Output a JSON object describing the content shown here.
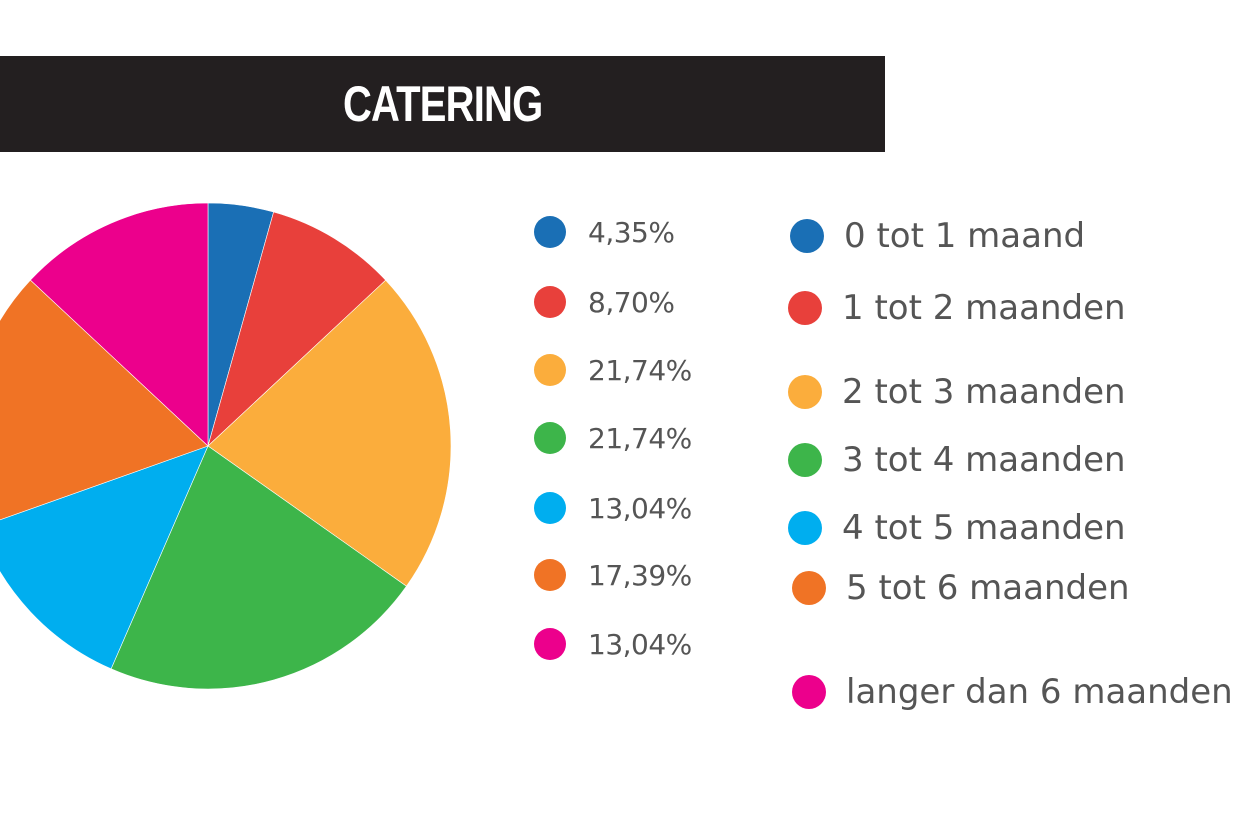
{
  "chart_data": {
    "type": "pie",
    "title": "CATERING",
    "categories": [
      "0 tot 1 maand",
      "1 tot 2 maanden",
      "2 tot 3 maanden",
      "3 tot 4 maanden",
      "4 tot 5 maanden",
      "5 tot 6 maanden",
      "langer dan 6 maanden"
    ],
    "values": [
      4.35,
      8.7,
      21.74,
      21.74,
      13.04,
      17.39,
      13.04
    ],
    "value_labels": [
      "4,35%",
      "8,70%",
      "21,74%",
      "21,74%",
      "13,04%",
      "17,39%",
      "13,04%"
    ],
    "colors": [
      "#1a6fb5",
      "#e8403b",
      "#fbad3c",
      "#3db54a",
      "#00aeef",
      "#f07325",
      "#ec008c"
    ],
    "start_angle_deg": 0,
    "direction": "clockwise"
  }
}
